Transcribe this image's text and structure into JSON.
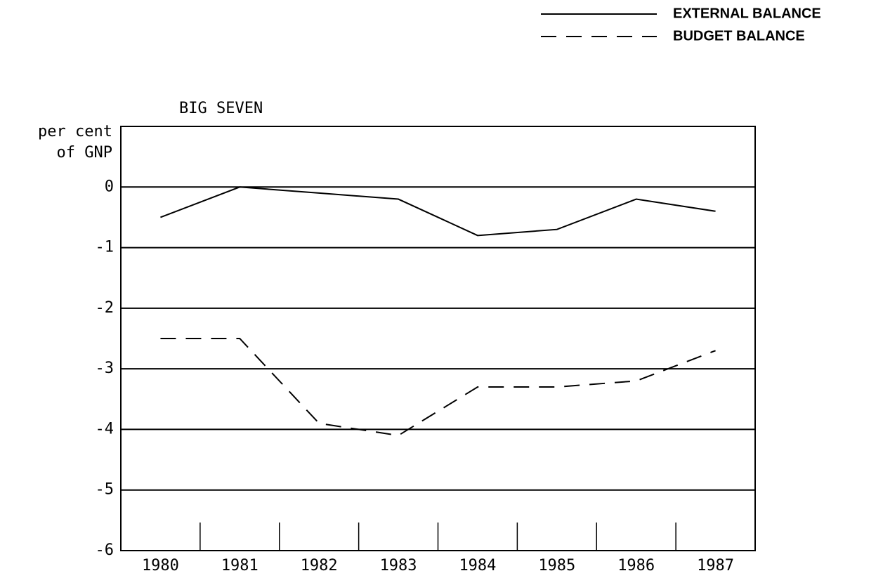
{
  "chart_data": {
    "type": "line",
    "title": "BIG SEVEN",
    "ylabel": [
      "per cent",
      "of GNP"
    ],
    "categories": [
      "1980",
      "1981",
      "1982",
      "1983",
      "1984",
      "1985",
      "1986",
      "1987"
    ],
    "series": [
      {
        "name": "EXTERNAL BALANCE",
        "color": "#000000",
        "dash": "solid",
        "values": [
          -0.5,
          0.0,
          -0.1,
          -0.2,
          -0.8,
          -0.7,
          -0.2,
          -0.4
        ]
      },
      {
        "name": "BUDGET BALANCE",
        "color": "#000000",
        "dash": "dashed",
        "values": [
          -2.5,
          -2.5,
          -3.9,
          -4.1,
          -3.3,
          -3.3,
          -3.2,
          -2.7
        ]
      }
    ],
    "ylim": [
      -6,
      1
    ],
    "yticks": [
      0,
      -1,
      -2,
      -3,
      -4,
      -5,
      -6
    ],
    "grid": true,
    "legend": "top-right"
  }
}
